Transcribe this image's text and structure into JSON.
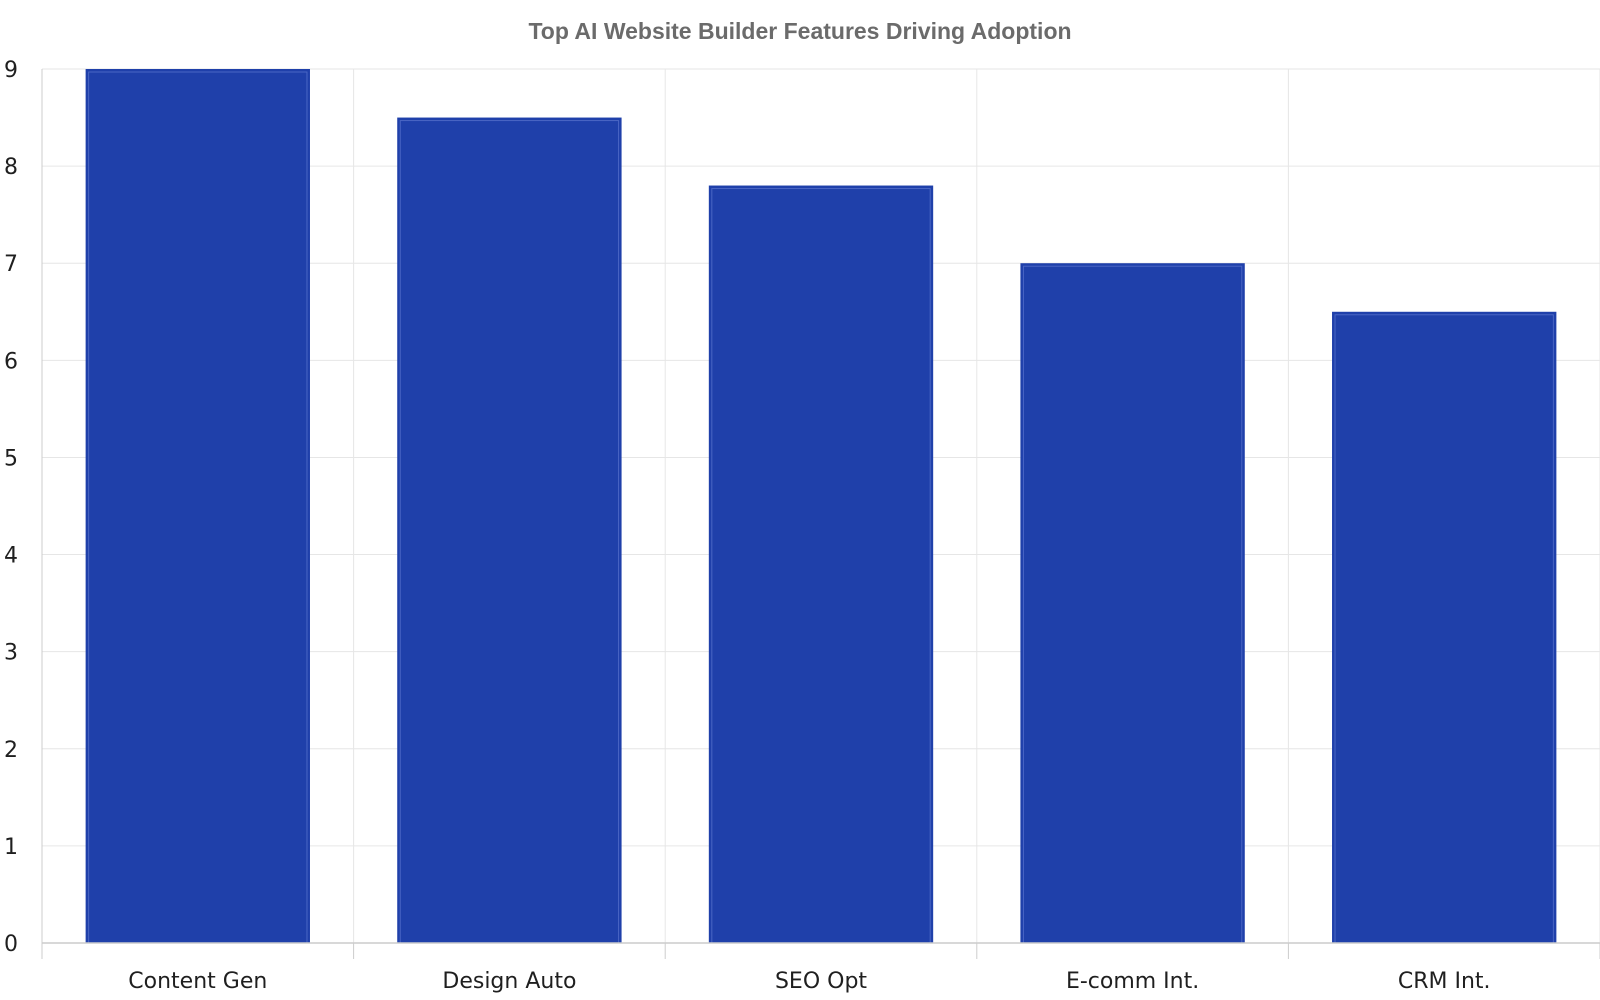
{
  "chart_data": {
    "type": "bar",
    "title": "Top AI Website Builder Features Driving Adoption",
    "xlabel": "",
    "ylabel": "",
    "categories": [
      "Content Gen",
      "Design Auto",
      "SEO Opt",
      "E-comm Int.",
      "CRM Int."
    ],
    "values": [
      9.0,
      8.5,
      7.8,
      7.0,
      6.5
    ],
    "ylim": [
      0,
      9
    ],
    "yticks": [
      0,
      1,
      2,
      3,
      4,
      5,
      6,
      7,
      8,
      9
    ],
    "grid": true,
    "legend": "none",
    "colors": {
      "bar_fill": "#1f40aa",
      "bar_inner_stroke": "#4a66c4",
      "grid": "#e6e6e6",
      "axis": "#cccccc",
      "title": "#6b6b6b",
      "tick_text": "#1f1f1f"
    }
  }
}
